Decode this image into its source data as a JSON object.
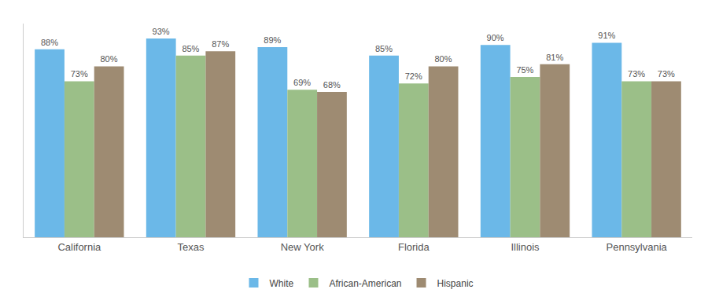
{
  "chart_data": {
    "type": "bar",
    "categories": [
      "California",
      "Texas",
      "New York",
      "Florida",
      "Illinois",
      "Pennsylvania"
    ],
    "series": [
      {
        "name": "White",
        "color": "#6BB8E8",
        "values": [
          88,
          93,
          89,
          85,
          90,
          91
        ],
        "value_labels": [
          "88%",
          "93%",
          "89%",
          "85%",
          "90%",
          "91%"
        ]
      },
      {
        "name": "African-American",
        "color": "#9BBF88",
        "values": [
          73,
          85,
          69,
          72,
          75,
          73
        ],
        "value_labels": [
          "73%",
          "85%",
          "69%",
          "72%",
          "75%",
          "73%"
        ]
      },
      {
        "name": "Hispanic",
        "color": "#9E8B72",
        "values": [
          80,
          87,
          68,
          80,
          81,
          73
        ],
        "value_labels": [
          "80%",
          "87%",
          "68%",
          "80%",
          "81%",
          "73%"
        ]
      }
    ],
    "ylim": [
      0,
      100
    ],
    "grid": false,
    "legend": "bottom",
    "data_labels": true,
    "tick_labels": "x"
  }
}
